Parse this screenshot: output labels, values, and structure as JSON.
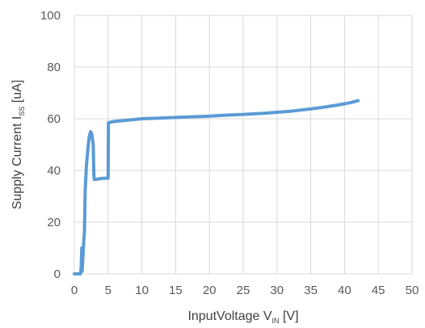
{
  "chart_data": {
    "type": "line",
    "title": "",
    "xlabel": {
      "main": "InputVoltage  V",
      "sub": "IN",
      "unit": " [V]"
    },
    "ylabel": {
      "main": "Supply Current I",
      "sub": "SS",
      "unit": " [uA]"
    },
    "xlim": [
      0,
      50
    ],
    "ylim": [
      0,
      100
    ],
    "xticks": [
      0,
      5,
      10,
      15,
      20,
      25,
      30,
      35,
      40,
      45,
      50
    ],
    "yticks": [
      0,
      20,
      40,
      60,
      80,
      100
    ],
    "grid": true,
    "line_color": "#5b9bd5",
    "series": [
      {
        "x": [
          0.0,
          0.9,
          1.0,
          1.1,
          1.15,
          1.2,
          1.3,
          1.4,
          1.5,
          1.6,
          1.7,
          1.8,
          2.0,
          2.2,
          2.4,
          2.6,
          2.8,
          2.9,
          2.95,
          3.0,
          3.5,
          4.0,
          4.5,
          5.0,
          5.05,
          6,
          8,
          10,
          12,
          15,
          18,
          20,
          22,
          25,
          28,
          30,
          32,
          35,
          37,
          39,
          41,
          42
        ],
        "y": [
          0.0,
          0.0,
          2.0,
          10.0,
          1.0,
          3.0,
          8.0,
          13.0,
          16.0,
          32.0,
          37.0,
          42.0,
          48.0,
          53.0,
          55.0,
          54.0,
          50.0,
          38.0,
          36.5,
          36.5,
          36.7,
          36.9,
          37.0,
          37.0,
          58.5,
          59.0,
          59.5,
          60.0,
          60.2,
          60.5,
          60.8,
          61.0,
          61.3,
          61.7,
          62.1,
          62.5,
          62.9,
          63.8,
          64.5,
          65.3,
          66.3,
          67.0
        ]
      }
    ]
  }
}
